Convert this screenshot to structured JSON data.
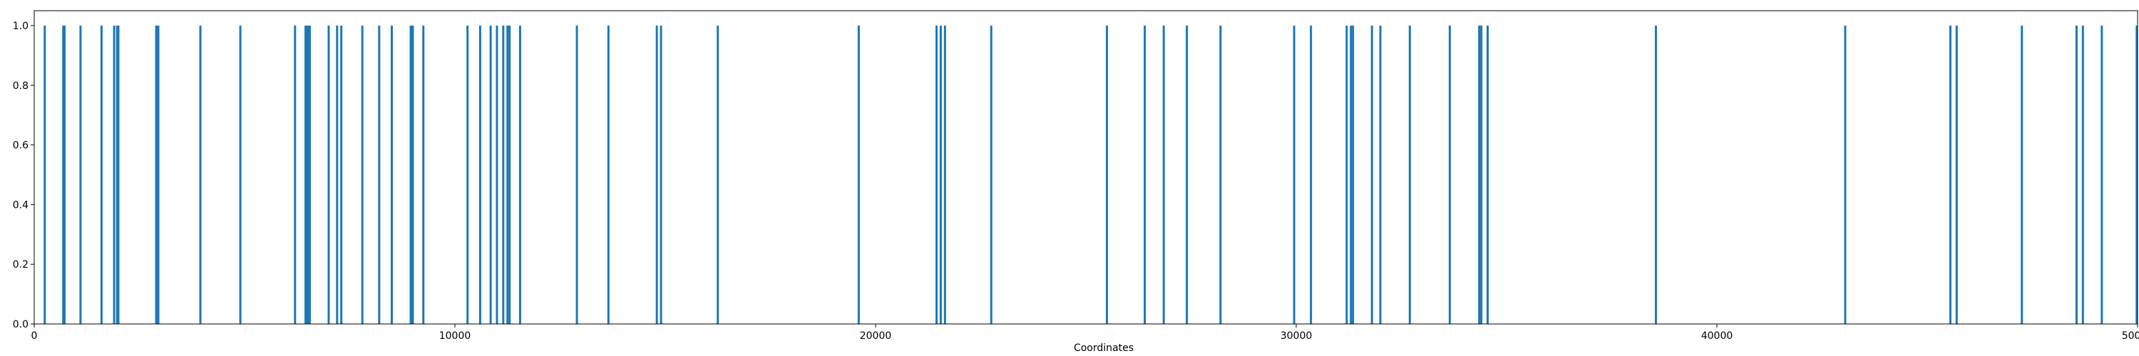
{
  "chart_data": {
    "type": "bar",
    "xlabel": "Coordinates",
    "ylabel": "",
    "xlim": [
      0,
      50000
    ],
    "ylim": [
      0,
      1.05
    ],
    "x_ticks": [
      0,
      10000,
      20000,
      30000,
      40000,
      50000
    ],
    "y_ticks": [
      0.0,
      0.2,
      0.4,
      0.6,
      0.8,
      1.0
    ],
    "x_tick_labels": [
      "0",
      "10000",
      "20000",
      "30000",
      "40000",
      "50000"
    ],
    "y_tick_labels": [
      "0.0",
      "0.2",
      "0.4",
      "0.6",
      "0.8",
      "1.0"
    ],
    "bar_color": "#1f77b4",
    "grid": false,
    "x": [
      250,
      690,
      720,
      1100,
      1600,
      1900,
      1970,
      2000,
      2900,
      2950,
      3950,
      4900,
      6200,
      6450,
      6500,
      6550,
      7000,
      7200,
      7300,
      7800,
      8200,
      8500,
      8950,
      9000,
      9250,
      10300,
      10600,
      10850,
      11000,
      11150,
      11250,
      11300,
      11550,
      12900,
      13650,
      14800,
      14900,
      16250,
      19600,
      21450,
      21550,
      21650,
      22750,
      25500,
      26400,
      26850,
      27400,
      28200,
      29950,
      30350,
      31200,
      31300,
      31350,
      31800,
      32000,
      32700,
      33650,
      34350,
      34400,
      34550,
      38550,
      43050,
      45550,
      45700,
      47250,
      48550,
      48700,
      49150,
      49980
    ],
    "values": [
      1,
      1,
      1,
      1,
      1,
      1,
      1,
      1,
      1,
      1,
      1,
      1,
      1,
      1,
      1,
      1,
      1,
      1,
      1,
      1,
      1,
      1,
      1,
      1,
      1,
      1,
      1,
      1,
      1,
      1,
      1,
      1,
      1,
      1,
      1,
      1,
      1,
      1,
      1,
      1,
      1,
      1,
      1,
      1,
      1,
      1,
      1,
      1,
      1,
      1,
      1,
      1,
      1,
      1,
      1,
      1,
      1,
      1,
      1,
      1,
      1,
      1,
      1,
      1,
      1,
      1,
      1,
      1,
      1
    ]
  }
}
